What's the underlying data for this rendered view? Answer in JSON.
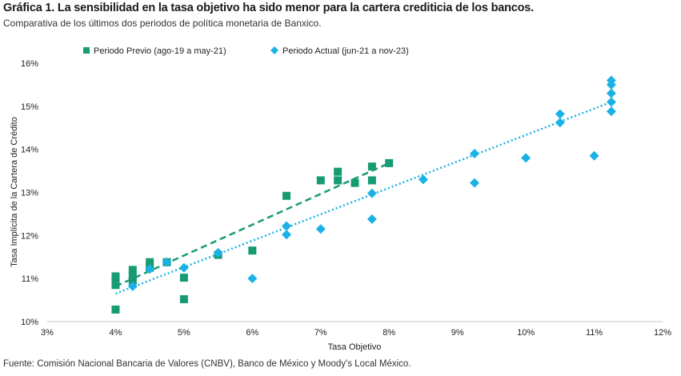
{
  "header": {
    "title": "Gráfica 1. La sensibilidad en la tasa objetivo ha sido menor para la cartera crediticia de los bancos.",
    "subtitle": "Comparativa de los últimos dos periodos de política monetaria de Banxico."
  },
  "footer": {
    "source": "Fuente: Comisión Nacional Bancaria de Valores (CNBV), Banco de México y Moody's Local México."
  },
  "colors": {
    "previo": "#169b73",
    "actual": "#1ab2e6",
    "axis": "#bfbfbf"
  },
  "chart_data": {
    "type": "scatter",
    "xlabel": "Tasa Objetivo",
    "ylabel": "Tasa Implícita de la Cartera de Crédito",
    "xlim": [
      3,
      12
    ],
    "ylim": [
      10,
      16
    ],
    "x_ticks": [
      3,
      4,
      5,
      6,
      7,
      8,
      9,
      10,
      11,
      12
    ],
    "x_tick_labels": [
      "3%",
      "4%",
      "5%",
      "6%",
      "7%",
      "8%",
      "9%",
      "10%",
      "11%",
      "12%"
    ],
    "y_ticks": [
      10,
      11,
      12,
      13,
      14,
      15,
      16
    ],
    "y_tick_labels": [
      "10%",
      "11%",
      "12%",
      "13%",
      "14%",
      "15%",
      "16%"
    ],
    "grid": false,
    "legend_position": "top",
    "series": [
      {
        "name": "Periodo Previo (ago-19 a may-21)",
        "marker": "square",
        "trendline": "dashed",
        "points": [
          [
            4.0,
            10.28
          ],
          [
            4.0,
            10.85
          ],
          [
            4.0,
            10.95
          ],
          [
            4.0,
            11.05
          ],
          [
            4.25,
            10.95
          ],
          [
            4.25,
            11.05
          ],
          [
            4.25,
            11.2
          ],
          [
            4.5,
            11.25
          ],
          [
            4.5,
            11.38
          ],
          [
            4.75,
            11.38
          ],
          [
            5.0,
            10.52
          ],
          [
            5.0,
            11.02
          ],
          [
            5.5,
            11.55
          ],
          [
            6.0,
            11.65
          ],
          [
            6.5,
            12.92
          ],
          [
            7.0,
            13.28
          ],
          [
            7.25,
            13.28
          ],
          [
            7.25,
            13.48
          ],
          [
            7.5,
            13.22
          ],
          [
            7.75,
            13.28
          ],
          [
            7.75,
            13.6
          ],
          [
            8.0,
            13.68
          ]
        ],
        "trend": [
          [
            4.0,
            10.82
          ],
          [
            8.0,
            13.68
          ]
        ]
      },
      {
        "name": "Periodo Actual (jun-21 a nov-23)",
        "marker": "diamond",
        "trendline": "dotted",
        "points": [
          [
            4.25,
            10.82
          ],
          [
            4.5,
            11.22
          ],
          [
            4.75,
            11.38
          ],
          [
            5.0,
            11.25
          ],
          [
            5.5,
            11.6
          ],
          [
            6.0,
            11.0
          ],
          [
            6.5,
            12.02
          ],
          [
            6.5,
            12.22
          ],
          [
            7.0,
            12.15
          ],
          [
            7.75,
            12.38
          ],
          [
            7.75,
            12.98
          ],
          [
            8.5,
            13.3
          ],
          [
            9.25,
            13.22
          ],
          [
            9.25,
            13.9
          ],
          [
            10.0,
            13.8
          ],
          [
            10.5,
            14.62
          ],
          [
            10.5,
            14.82
          ],
          [
            11.0,
            13.85
          ],
          [
            11.25,
            14.88
          ],
          [
            11.25,
            15.1
          ],
          [
            11.25,
            15.3
          ],
          [
            11.25,
            15.5
          ],
          [
            11.25,
            15.6
          ]
        ],
        "trend": [
          [
            4.0,
            10.65
          ],
          [
            11.25,
            15.1
          ]
        ]
      }
    ]
  }
}
